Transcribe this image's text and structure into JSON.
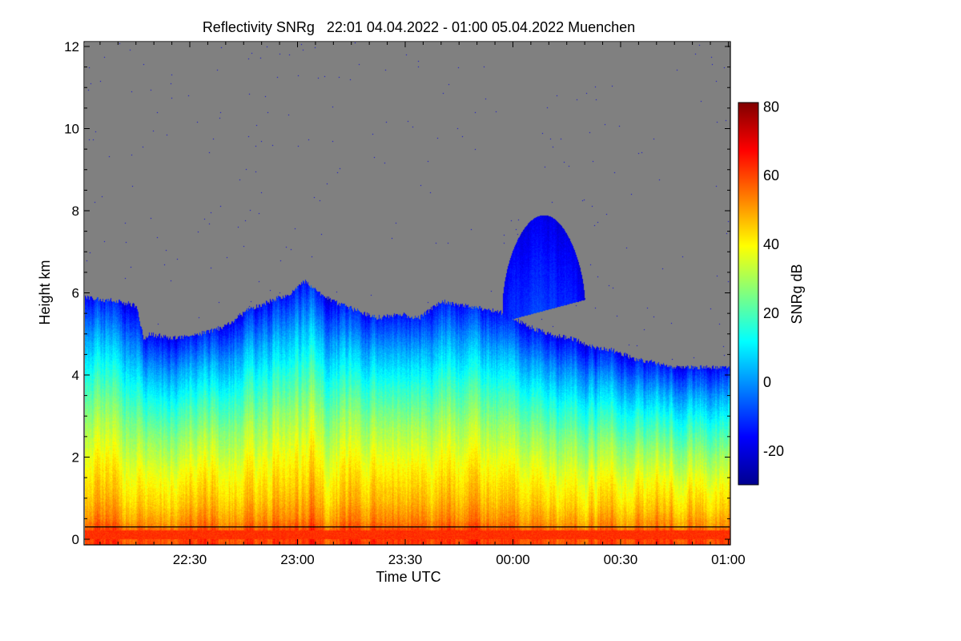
{
  "chart_data": {
    "type": "heatmap",
    "title": "Reflectivity SNRg   22:01 04.04.2022 - 01:00 05.04.2022 Muenchen",
    "xlabel": "Time UTC",
    "ylabel": "Height km",
    "x_range_min_after_2200": [
      1,
      180
    ],
    "x_ticks": [
      {
        "label": "22:30",
        "min": 30
      },
      {
        "label": "23:00",
        "min": 60
      },
      {
        "label": "23:30",
        "min": 90
      },
      {
        "label": "00:00",
        "min": 120
      },
      {
        "label": "00:30",
        "min": 150
      },
      {
        "label": "01:00",
        "min": 180
      }
    ],
    "ylim": [
      -0.15,
      12.1
    ],
    "y_ticks": [
      "0",
      "2",
      "4",
      "6",
      "8",
      "10",
      "12"
    ],
    "colorbar": {
      "label": "SNRg dB",
      "range": [
        -30,
        81
      ],
      "ticks": [
        "80",
        "60",
        "40",
        "20",
        "0",
        "-20"
      ],
      "colormap": "jet"
    },
    "no_data_color": "#808080",
    "reference_line_km": 0.3,
    "cloud_top_km": {
      "time_min": [
        1,
        10,
        15,
        17,
        19,
        25,
        32,
        40,
        46,
        52,
        58,
        62,
        66,
        70,
        76,
        82,
        88,
        94,
        100,
        106,
        112,
        118,
        124,
        130,
        136,
        142,
        148,
        154,
        160,
        166,
        172,
        180
      ],
      "height_km": [
        5.9,
        5.8,
        5.7,
        4.9,
        5.0,
        4.9,
        5.0,
        5.2,
        5.6,
        5.8,
        6.0,
        6.3,
        6.0,
        5.8,
        5.6,
        5.4,
        5.5,
        5.4,
        5.8,
        5.7,
        5.6,
        5.5,
        5.2,
        5.0,
        4.9,
        4.7,
        4.6,
        4.4,
        4.3,
        4.2,
        4.2,
        4.2
      ]
    },
    "elevated_layer": {
      "start_min": 117,
      "end_min": 147,
      "base_km": 5.6,
      "top_km": 7.9
    },
    "snr_profile": {
      "height_km": [
        0,
        0.1,
        0.5,
        1,
        2,
        3,
        4,
        5,
        6
      ],
      "snr_db": [
        60,
        62,
        52,
        46,
        38,
        28,
        16,
        2,
        -15
      ]
    }
  }
}
